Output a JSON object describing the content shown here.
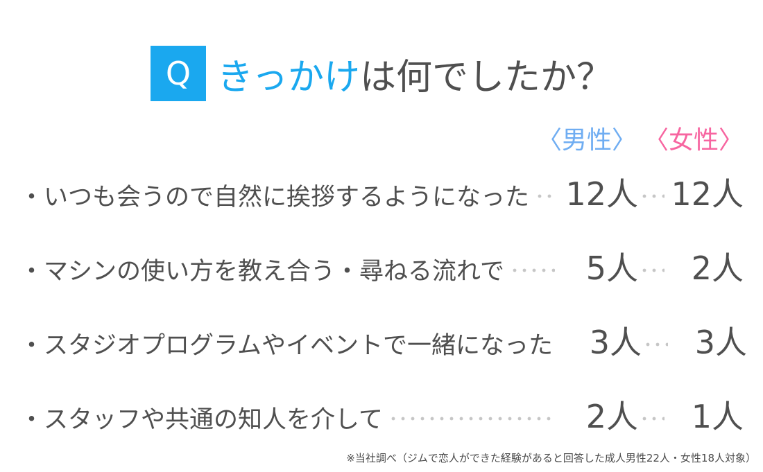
{
  "title": {
    "q_label": "Q",
    "highlight": "きっかけ",
    "rest": "は何でしたか？"
  },
  "colors": {
    "accent_blue": "#1aa8ef",
    "male_header": "#6fadf2",
    "female_header": "#f765a0",
    "text_dark": "#4f4f4f",
    "leader_dots": "#c6c6c6"
  },
  "table": {
    "bullet": "・",
    "columns": [
      {
        "label": "〈男性〉"
      },
      {
        "label": "〈女性〉"
      }
    ],
    "rows": [
      {
        "label": "いつも会うので自然に挨拶するようになった",
        "male": "12人",
        "female": "12人"
      },
      {
        "label": "マシンの使い方を教え合う・尋ねる流れで",
        "male": "5人",
        "female": "2人"
      },
      {
        "label": "スタジオプログラムやイベントで一緒になった",
        "male": "3人",
        "female": "3人"
      },
      {
        "label": "スタッフや共通の知人を介して",
        "male": "2人",
        "female": "1人"
      }
    ]
  },
  "footnote": {
    "text": "※当社調べ（ジムで恋人ができた経験があると回答した成人男性22人・女性18人対象）"
  },
  "chart_data": {
    "type": "table",
    "title": "きっかけは何でしたか？",
    "categories": [
      "いつも会うので自然に挨拶するようになった",
      "マシンの使い方を教え合う・尋ねる流れで",
      "スタジオプログラムやイベントで一緒になった",
      "スタッフや共通の知人を介して"
    ],
    "series": [
      {
        "name": "男性",
        "values": [
          12,
          5,
          3,
          2
        ],
        "unit": "人"
      },
      {
        "name": "女性",
        "values": [
          12,
          2,
          3,
          1
        ],
        "unit": "人"
      }
    ],
    "note": "※当社調べ（ジムで恋人ができた経験があると回答した成人男性22人・女性18人対象）"
  }
}
